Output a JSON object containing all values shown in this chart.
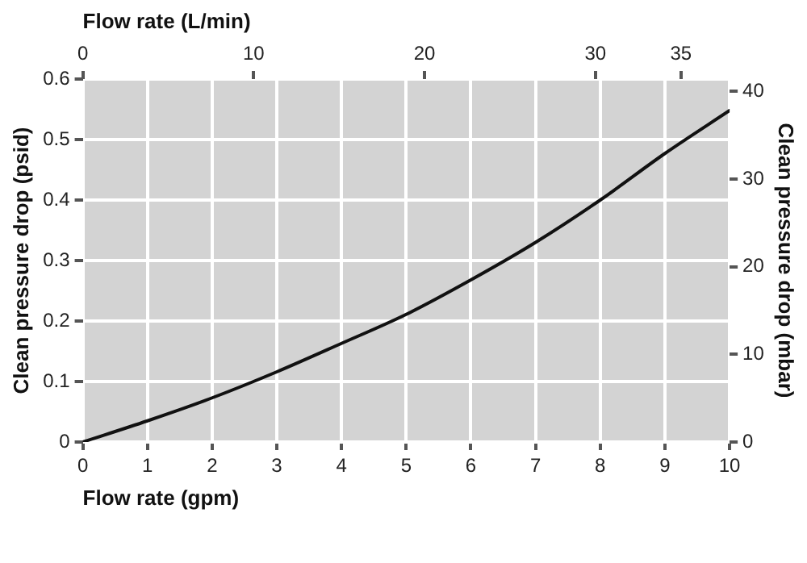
{
  "chart_data": {
    "type": "line",
    "xlabel": "Flow rate (gpm)",
    "x2label": "Flow rate (L/min)",
    "ylabel": "Clean pressure drop (psid)",
    "y2label": "Clean pressure drop (mbar)",
    "x": [
      0,
      1,
      2,
      3,
      4,
      5,
      6,
      7,
      8,
      9,
      10
    ],
    "series": [
      {
        "color": "#111111",
        "values": [
          0,
          0.035,
          0.073,
          0.116,
          0.163,
          0.211,
          0.268,
          0.33,
          0.4,
          0.477,
          0.548
        ]
      }
    ],
    "xlim": [
      0,
      10
    ],
    "xticks": [
      0,
      1,
      2,
      3,
      4,
      5,
      6,
      7,
      8,
      9,
      10
    ],
    "x2lim": [
      0,
      37.85
    ],
    "x2ticks": [
      0,
      10,
      20,
      30,
      35
    ],
    "ylim": [
      0,
      0.6
    ],
    "yticks": [
      0,
      0.1,
      0.2,
      0.3,
      0.4,
      0.5,
      0.6
    ],
    "y2lim": [
      0,
      41.4
    ],
    "y2ticks": [
      0,
      10,
      20,
      30,
      40
    ],
    "grid": true,
    "legend": false,
    "marker": "none",
    "line_style": "solid"
  }
}
